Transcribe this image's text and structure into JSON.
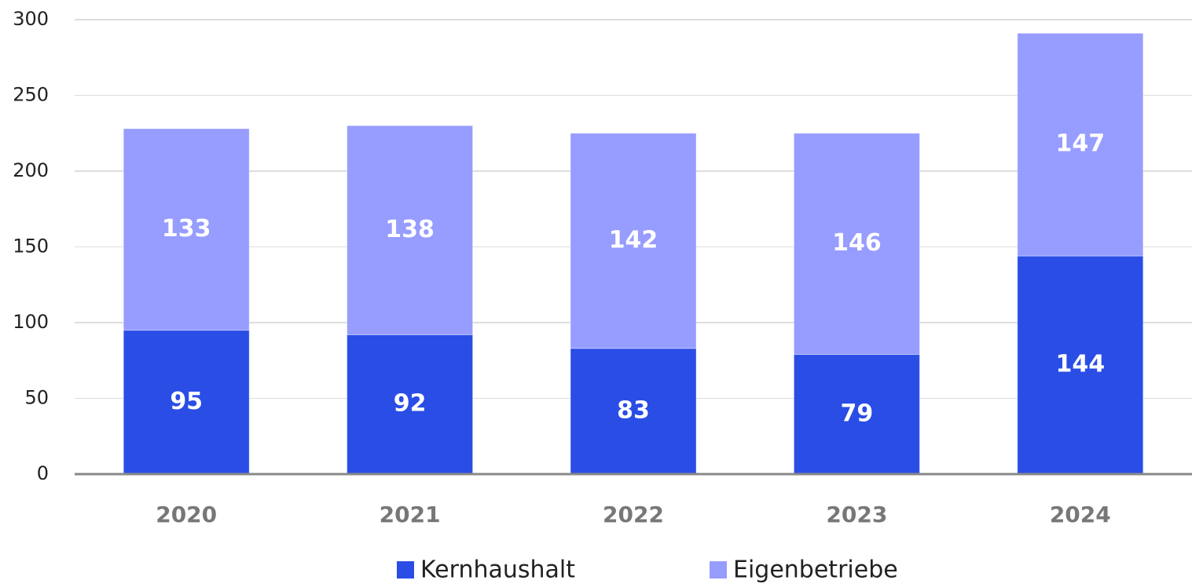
{
  "chart_data": {
    "type": "stacked_bar",
    "categories": [
      "2020",
      "2021",
      "2022",
      "2023",
      "2024"
    ],
    "series": [
      {
        "name": "Kernhaushalt",
        "color": "#2a4de6",
        "values": [
          95,
          92,
          83,
          79,
          144
        ]
      },
      {
        "name": "Eigenbetriebe",
        "color": "#979cff",
        "values": [
          133,
          138,
          142,
          146,
          147
        ]
      }
    ],
    "ylim": [
      0,
      300
    ],
    "yticks": [
      0,
      50,
      100,
      150,
      200,
      250,
      300
    ],
    "grid": true,
    "legend": "bottom"
  }
}
